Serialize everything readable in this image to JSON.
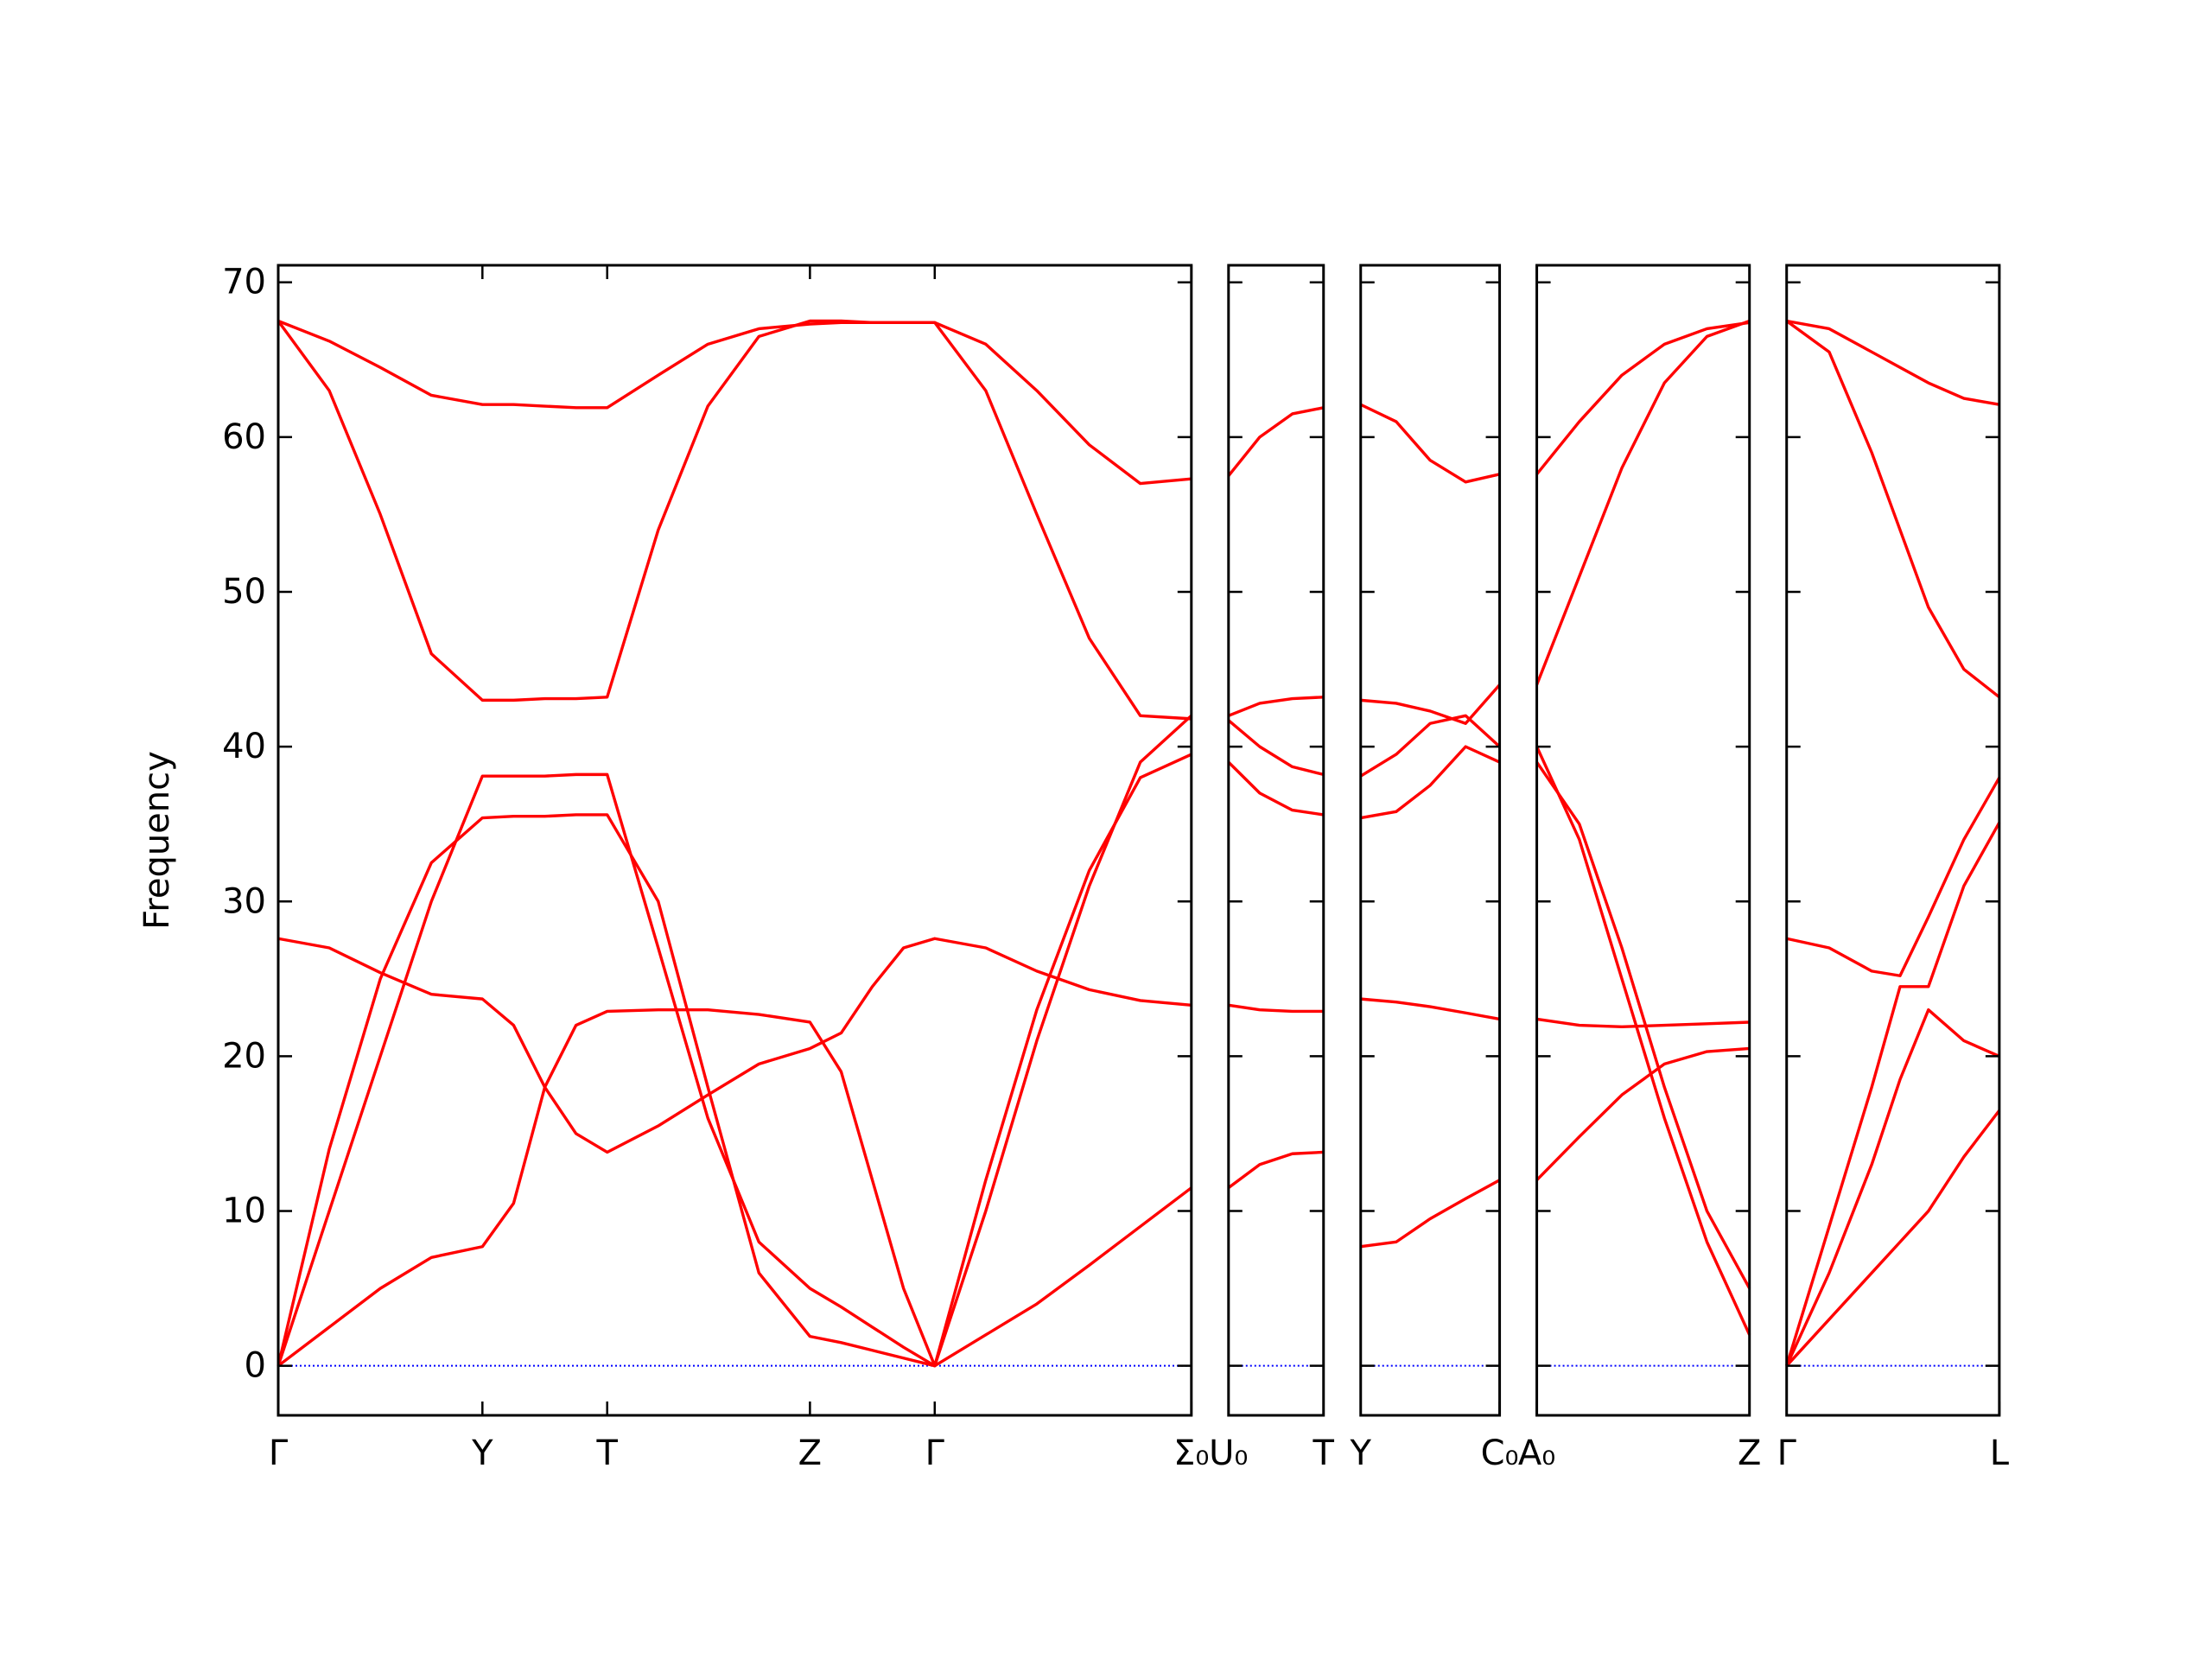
{
  "chart_data": [
    {
      "type": "line",
      "ylabel": "Frequency",
      "x": [
        0,
        0.36,
        0.72,
        1.08,
        1.44,
        1.66,
        1.88,
        2.1,
        2.32,
        2.68,
        3.03,
        3.39,
        3.75,
        3.97,
        4.19,
        4.41,
        4.63,
        4.99,
        5.35,
        5.72,
        6.08,
        6.44
      ],
      "xlim": [
        0,
        6.44
      ],
      "xticks": [
        {
          "value": 0,
          "label": "Γ"
        },
        {
          "value": 1.44,
          "label": "Y"
        },
        {
          "value": 2.32,
          "label": "T"
        },
        {
          "value": 3.75,
          "label": "Z"
        },
        {
          "value": 4.63,
          "label": "Γ"
        },
        {
          "value": 6.44,
          "label": "Σ₀"
        }
      ],
      "ylim": [
        -3.2,
        71.1
      ],
      "yticks": [
        0,
        10,
        20,
        30,
        40,
        50,
        60,
        70
      ],
      "zero_line": {
        "y": 0,
        "color": "#0000ff"
      },
      "series": [
        {
          "color": "#ff0000",
          "values": [
            67.5,
            66.2,
            64.5,
            62.7,
            62.1,
            62.1,
            62.0,
            61.9,
            61.9,
            64,
            66,
            67,
            67.3,
            67.4,
            67.4,
            67.4,
            67.4,
            66,
            63,
            59.5,
            57,
            57.3
          ]
        },
        {
          "color": "#ff0000",
          "values": [
            67.5,
            63,
            55,
            46,
            43,
            43,
            43.1,
            43.1,
            43.2,
            54,
            62,
            66.5,
            67.5,
            67.5,
            67.4,
            67.4,
            67.4,
            63,
            55,
            47,
            42,
            41.8
          ]
        },
        {
          "color": "#ff0000",
          "values": [
            27.6,
            27,
            25.4,
            24,
            23.7,
            22,
            18,
            15,
            13.8,
            15.5,
            17.5,
            19.5,
            20.5,
            21.5,
            24.5,
            27,
            27.6,
            27,
            25.5,
            24.3,
            23.6,
            23.3
          ]
        },
        {
          "color": "#ff0000",
          "values": [
            0,
            14,
            25,
            32.5,
            35.4,
            35.5,
            35.5,
            35.6,
            35.6,
            30,
            18,
            6,
            1.9,
            1.5,
            1,
            0.5,
            0,
            12,
            23,
            32,
            38,
            39.5
          ]
        },
        {
          "color": "#ff0000",
          "values": [
            0,
            10,
            20,
            30,
            38.1,
            38.1,
            38.1,
            38.2,
            38.2,
            27,
            16,
            8,
            5,
            3.8,
            2.5,
            1.2,
            0,
            10,
            21,
            31,
            39,
            42
          ]
        },
        {
          "color": "#ff0000",
          "values": [
            0,
            2.5,
            5,
            7,
            7.7,
            10.5,
            18,
            22,
            22.9,
            23,
            23,
            22.7,
            22.2,
            19,
            12,
            5,
            0,
            2,
            4,
            6.5,
            9,
            11.5
          ]
        }
      ]
    },
    {
      "type": "line",
      "x": [
        0,
        0.22,
        0.45,
        0.67
      ],
      "xlim": [
        0,
        0.67
      ],
      "xticks": [
        {
          "value": 0,
          "label": "U₀"
        },
        {
          "value": 0.67,
          "label": "T"
        }
      ],
      "ylim": [
        -3.2,
        71.1
      ],
      "yticks": [
        0,
        10,
        20,
        30,
        40,
        50,
        60,
        70
      ],
      "zero_line": {
        "y": 0,
        "color": "#0000ff"
      },
      "series": [
        {
          "color": "#ff0000",
          "values": [
            57.5,
            60,
            61.5,
            61.9
          ]
        },
        {
          "color": "#ff0000",
          "values": [
            42,
            42.8,
            43.1,
            43.2
          ]
        },
        {
          "color": "#ff0000",
          "values": [
            41.7,
            40,
            38.7,
            38.2
          ]
        },
        {
          "color": "#ff0000",
          "values": [
            39,
            37,
            35.9,
            35.6
          ]
        },
        {
          "color": "#ff0000",
          "values": [
            23.3,
            23,
            22.9,
            22.9
          ]
        },
        {
          "color": "#ff0000",
          "values": [
            11.5,
            13,
            13.7,
            13.8
          ]
        }
      ]
    },
    {
      "type": "line",
      "x": [
        0,
        0.25,
        0.49,
        0.74,
        0.98
      ],
      "xlim": [
        0,
        0.98
      ],
      "xticks": [
        {
          "value": 0,
          "label": "Y"
        },
        {
          "value": 0.98,
          "label": "C₀"
        }
      ],
      "ylim": [
        -3.2,
        71.1
      ],
      "yticks": [
        0,
        10,
        20,
        30,
        40,
        50,
        60,
        70
      ],
      "zero_line": {
        "y": 0,
        "color": "#0000ff"
      },
      "series": [
        {
          "color": "#ff0000",
          "values": [
            62.1,
            61,
            58.5,
            57.1,
            57.6
          ]
        },
        {
          "color": "#ff0000",
          "values": [
            43,
            42.8,
            42.3,
            41.5,
            44
          ]
        },
        {
          "color": "#ff0000",
          "values": [
            38.1,
            39.5,
            41.5,
            42,
            40
          ]
        },
        {
          "color": "#ff0000",
          "values": [
            35.4,
            35.8,
            37.5,
            40,
            39
          ]
        },
        {
          "color": "#ff0000",
          "values": [
            23.7,
            23.5,
            23.2,
            22.8,
            22.4
          ]
        },
        {
          "color": "#ff0000",
          "values": [
            7.7,
            8,
            9.5,
            10.8,
            12
          ]
        }
      ]
    },
    {
      "type": "line",
      "x": [
        0,
        0.3,
        0.6,
        0.9,
        1.2,
        1.5
      ],
      "xlim": [
        0,
        1.5
      ],
      "xticks": [
        {
          "value": 0,
          "label": "A₀"
        },
        {
          "value": 1.5,
          "label": "Z"
        }
      ],
      "ylim": [
        -3.2,
        71.1
      ],
      "yticks": [
        0,
        10,
        20,
        30,
        40,
        50,
        60,
        70
      ],
      "zero_line": {
        "y": 0,
        "color": "#0000ff"
      },
      "series": [
        {
          "color": "#ff0000",
          "values": [
            57.6,
            61,
            64,
            66,
            67,
            67.4
          ]
        },
        {
          "color": "#ff0000",
          "values": [
            44,
            51,
            58,
            63.5,
            66.5,
            67.5
          ]
        },
        {
          "color": "#ff0000",
          "values": [
            40,
            34,
            25,
            16,
            8,
            2
          ]
        },
        {
          "color": "#ff0000",
          "values": [
            39,
            35,
            27,
            18,
            10,
            5
          ]
        },
        {
          "color": "#ff0000",
          "values": [
            22.4,
            22,
            21.9,
            22,
            22.1,
            22.2
          ]
        },
        {
          "color": "#ff0000",
          "values": [
            12,
            14.8,
            17.5,
            19.5,
            20.3,
            20.5
          ]
        }
      ]
    },
    {
      "type": "line",
      "x": [
        0,
        0.3,
        0.6,
        0.8,
        1.0,
        1.25,
        1.5
      ],
      "xlim": [
        0,
        1.5
      ],
      "xticks": [
        {
          "value": 0,
          "label": "Γ"
        },
        {
          "value": 1.5,
          "label": "L"
        }
      ],
      "ylim": [
        -3.2,
        71.1
      ],
      "yticks": [
        0,
        10,
        20,
        30,
        40,
        50,
        60,
        70
      ],
      "zero_line": {
        "y": 0,
        "color": "#0000ff"
      },
      "series": [
        {
          "color": "#ff0000",
          "values": [
            67.5,
            67,
            65.5,
            64.5,
            63.5,
            62.5,
            62.1
          ]
        },
        {
          "color": "#ff0000",
          "values": [
            67.5,
            65.5,
            59,
            54,
            49,
            45,
            43.2
          ]
        },
        {
          "color": "#ff0000",
          "values": [
            27.6,
            27,
            25.5,
            25.2,
            29,
            34,
            38
          ]
        },
        {
          "color": "#ff0000",
          "values": [
            0,
            9,
            18,
            24.5,
            24.5,
            31,
            35.1
          ]
        },
        {
          "color": "#ff0000",
          "values": [
            0,
            6,
            13,
            18.5,
            23,
            21,
            20
          ]
        },
        {
          "color": "#ff0000",
          "values": [
            0,
            3,
            6,
            8,
            10,
            13.5,
            16.5
          ]
        }
      ]
    }
  ]
}
